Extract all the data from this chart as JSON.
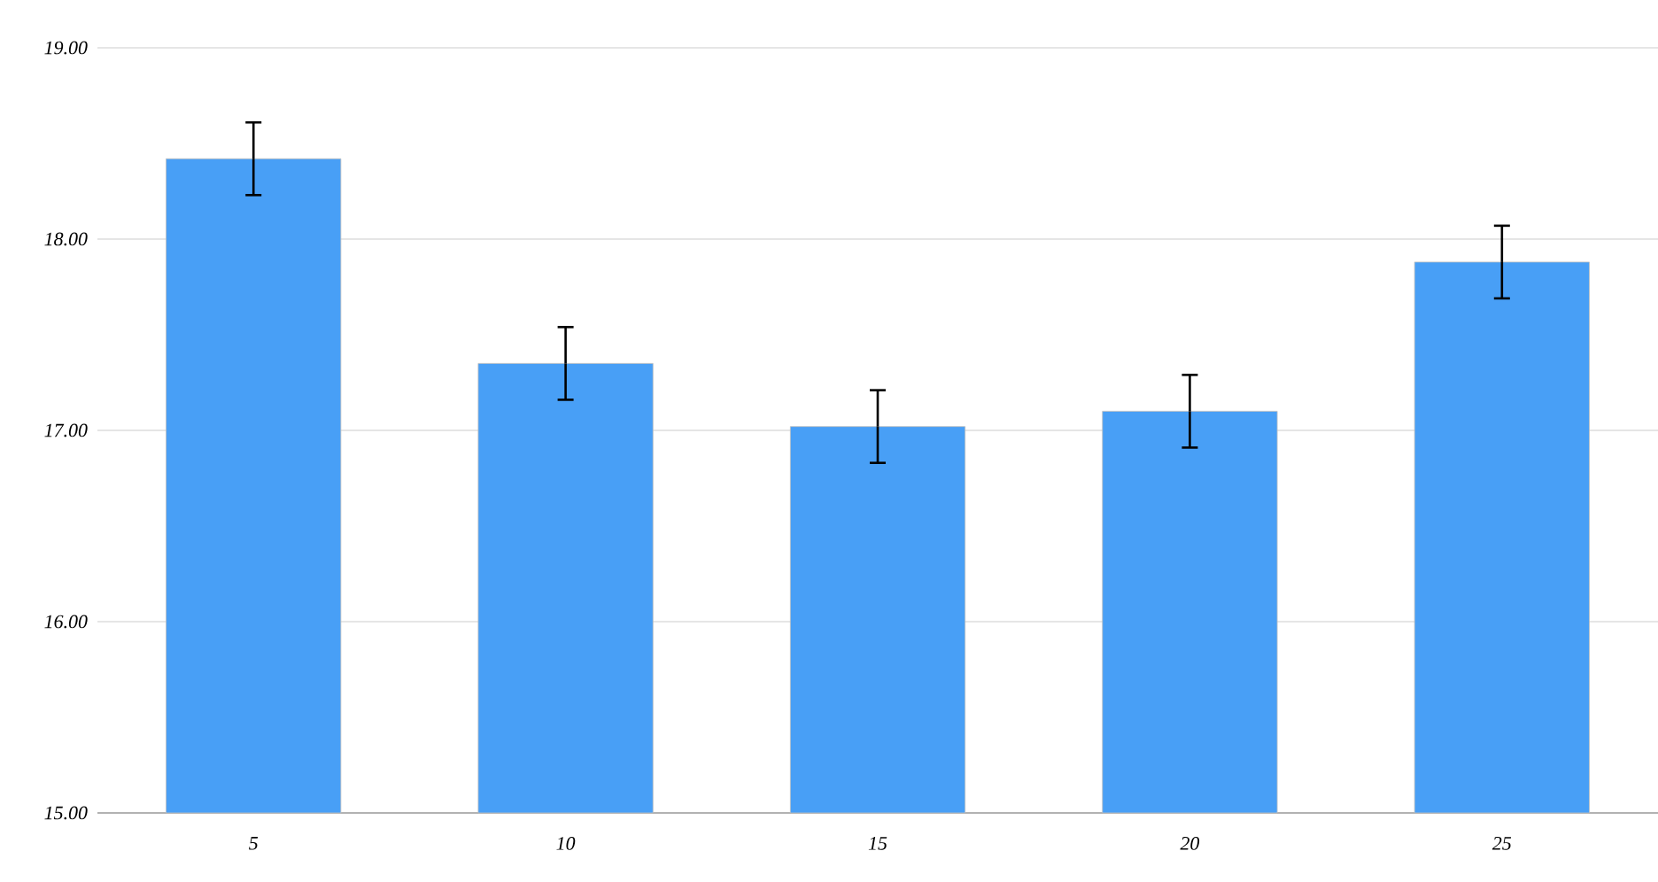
{
  "chart_data": {
    "type": "bar",
    "categories": [
      "5",
      "10",
      "15",
      "20",
      "25"
    ],
    "values": [
      18.42,
      17.35,
      17.02,
      17.1,
      17.88
    ],
    "errors": [
      0.19,
      0.19,
      0.19,
      0.19,
      0.19
    ],
    "color": "#489ff6",
    "ylim": [
      15,
      19
    ],
    "yticks": [
      {
        "value": 15,
        "label": "15.00"
      },
      {
        "value": 16,
        "label": "16.00"
      },
      {
        "value": 17,
        "label": "17.00"
      },
      {
        "value": 18,
        "label": "18.00"
      },
      {
        "value": 19,
        "label": "19.00"
      }
    ],
    "grid": "y"
  }
}
